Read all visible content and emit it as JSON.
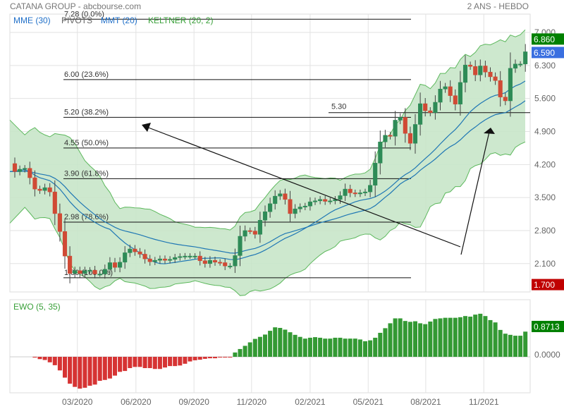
{
  "header": {
    "title": "CATANA GROUP - abcbourse.com",
    "period": "2 ANS - HEBDO"
  },
  "legend": {
    "mme": "MME (30)",
    "pivots": "PIVOTS",
    "mmt": "MMT (20)",
    "keltner": "KELTNER (20, 2)",
    "ewo": "EWO (5, 35)"
  },
  "colors": {
    "up": "#2e8b57",
    "down": "#d04a35",
    "ma": "#1f77b4",
    "band": "#5cb85c",
    "band_fill": "#c8e6c9",
    "badge_high": "#008000",
    "badge_last": "#3a6fe0",
    "badge_low": "#c00000",
    "ewo_up": "#339933",
    "ewo_down": "#d63333"
  },
  "chart_data": [
    {
      "type": "candlestick",
      "title": "CATANA GROUP",
      "ylim": [
        1.7,
        7.28
      ],
      "y_ticks": [
        "7.000",
        "6.300",
        "5.600",
        "4.900",
        "4.200",
        "3.500",
        "2.800",
        "2.100"
      ],
      "y_tick_values": [
        7.0,
        6.3,
        5.6,
        4.9,
        4.2,
        3.5,
        2.8,
        2.1
      ],
      "x_ticks": [
        {
          "label": "03/2020",
          "week": 12.5
        },
        {
          "label": "06/2020",
          "week": 24.2
        },
        {
          "label": "09/2020",
          "week": 35.8
        },
        {
          "label": "11/2020",
          "week": 47.3
        },
        {
          "label": "02/2021",
          "week": 59
        },
        {
          "label": "05/2021",
          "week": 70.6
        },
        {
          "label": "08/2021",
          "week": 82.1
        },
        {
          "label": "11/2021",
          "week": 93.7
        }
      ],
      "closes": [
        4.05,
        4.1,
        4.12,
        3.92,
        3.68,
        3.65,
        3.71,
        3.62,
        3.16,
        2.78,
        2.26,
        1.89,
        1.95,
        1.89,
        1.95,
        1.96,
        1.88,
        1.88,
        1.98,
        2.12,
        2.02,
        2.13,
        2.33,
        2.41,
        2.35,
        2.3,
        2.2,
        2.14,
        2.17,
        2.2,
        2.17,
        2.19,
        2.23,
        2.25,
        2.26,
        2.26,
        2.26,
        2.16,
        2.1,
        2.17,
        2.13,
        2.12,
        2.05,
        2.05,
        2.27,
        2.68,
        2.8,
        2.79,
        2.72,
        3.02,
        3.2,
        3.37,
        3.53,
        3.58,
        3.46,
        3.16,
        3.26,
        3.3,
        3.32,
        3.41,
        3.43,
        3.46,
        3.42,
        3.43,
        3.46,
        3.54,
        3.68,
        3.6,
        3.58,
        3.6,
        3.62,
        3.76,
        4.23,
        4.68,
        4.82,
        4.8,
        5.14,
        5.2,
        4.86,
        4.65,
        5.05,
        5.49,
        5.34,
        5.3,
        5.52,
        5.8,
        5.85,
        5.66,
        5.48,
        5.94,
        6.31,
        6.28,
        6.1,
        6.29,
        6.16,
        6.06,
        5.98,
        5.63,
        5.55,
        6.24,
        6.33,
        6.33,
        6.59
      ],
      "first_open": 4.22,
      "indicators": {
        "mme_period": 30,
        "mmt_period": 20,
        "keltner_period": 20,
        "keltner_mult": 2
      },
      "badges": {
        "high": "6.860",
        "last": "6.590",
        "low": "1.700"
      },
      "badge_values": {
        "high": 6.86,
        "last": 6.59,
        "low": 1.7
      },
      "fibonacci": [
        {
          "price": 7.28,
          "label": "7.28  (0.0%)"
        },
        {
          "price": 6.0,
          "label": "6.00  (23.6%)"
        },
        {
          "price": 5.2,
          "label": "5.20  (38.2%)"
        },
        {
          "price": 4.55,
          "label": "4.55  (50.0%)"
        },
        {
          "price": 3.9,
          "label": "3.90  (61.8%)"
        },
        {
          "price": 2.98,
          "label": "2.98  (78.6%)"
        },
        {
          "price": 1.8,
          "label": "1.80  (100.0%)"
        }
      ],
      "horizontal_line": {
        "price": 5.3,
        "label": "5.30"
      }
    },
    {
      "type": "bar",
      "title": "EWO (5, 35)",
      "y_ticks": [
        "0.0000"
      ],
      "last_label": "0.8713",
      "start_week": 4,
      "values": [
        -0.02,
        -0.08,
        -0.11,
        -0.19,
        -0.29,
        -0.47,
        -0.72,
        -0.93,
        -1.04,
        -1.1,
        -1.07,
        -1.0,
        -0.96,
        -0.83,
        -0.8,
        -0.75,
        -0.65,
        -0.52,
        -0.49,
        -0.39,
        -0.35,
        -0.35,
        -0.39,
        -0.39,
        -0.42,
        -0.42,
        -0.37,
        -0.32,
        -0.32,
        -0.3,
        -0.24,
        -0.16,
        -0.12,
        -0.1,
        -0.07,
        -0.05,
        -0.05,
        -0.02,
        -0.02,
        -0.02,
        0.15,
        0.27,
        0.38,
        0.5,
        0.62,
        0.69,
        0.77,
        0.9,
        1.02,
        1.0,
        0.94,
        0.85,
        0.76,
        0.69,
        0.63,
        0.66,
        0.68,
        0.66,
        0.63,
        0.63,
        0.66,
        0.66,
        0.63,
        0.63,
        0.63,
        0.6,
        0.54,
        0.57,
        0.66,
        0.83,
        0.99,
        1.16,
        1.33,
        1.33,
        1.24,
        1.21,
        1.23,
        1.16,
        1.13,
        1.22,
        1.31,
        1.33,
        1.35,
        1.35,
        1.35,
        1.37,
        1.41,
        1.39,
        1.46,
        1.49,
        1.41,
        1.27,
        1.19,
        0.93,
        0.8,
        0.76,
        0.73,
        0.73,
        0.8713
      ]
    }
  ]
}
